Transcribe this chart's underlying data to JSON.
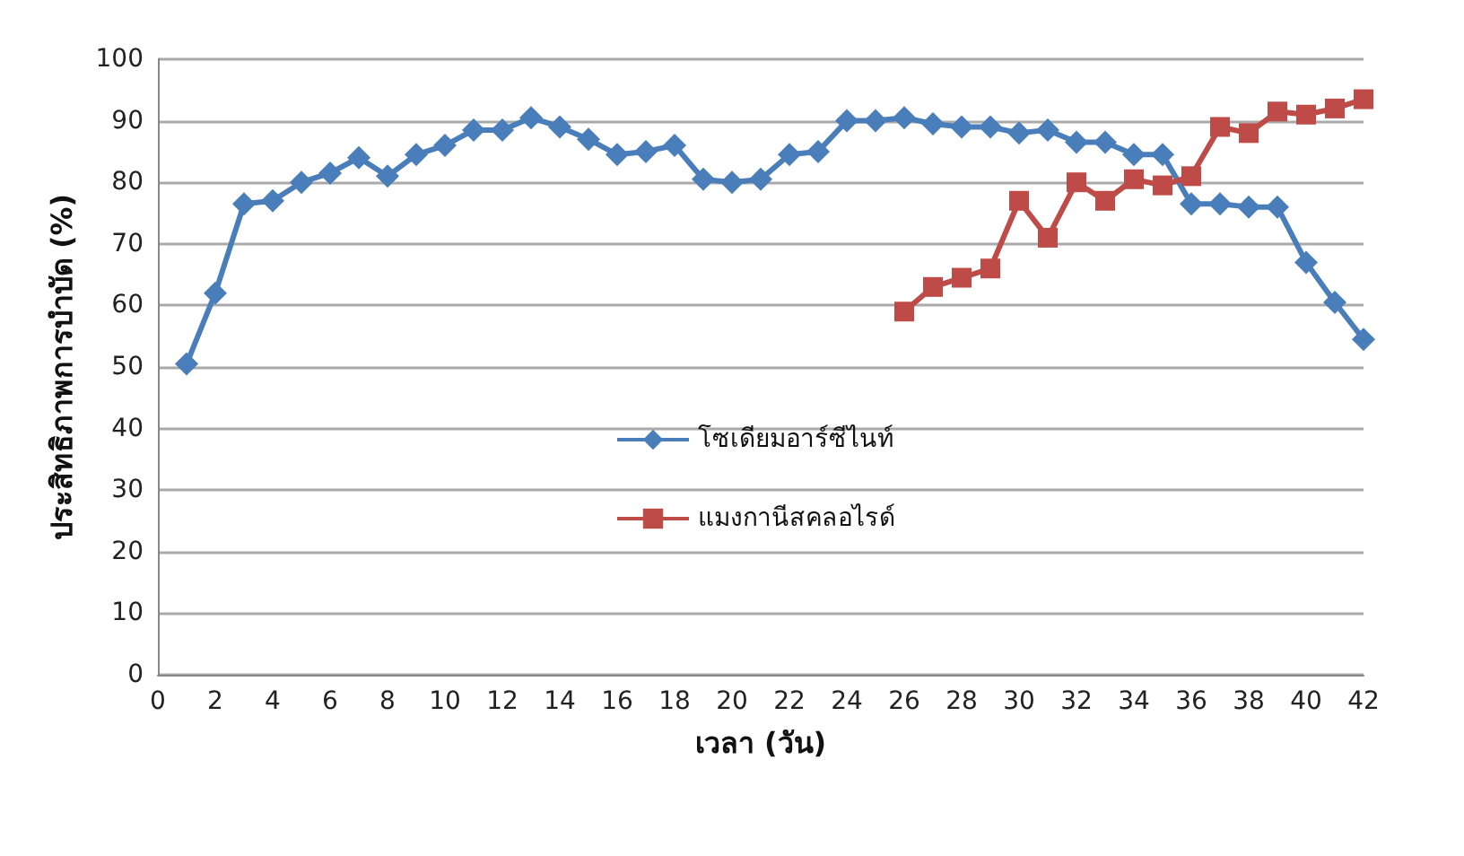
{
  "chart_data": {
    "type": "line",
    "xlabel": "เวลา (วัน)",
    "ylabel": "ประสิทธิภาพการบำบัด (%)",
    "xlim": [
      0,
      42
    ],
    "xticks": [
      0,
      2,
      4,
      6,
      8,
      10,
      12,
      14,
      16,
      18,
      20,
      22,
      24,
      26,
      28,
      30,
      32,
      34,
      36,
      38,
      40,
      42
    ],
    "ylim": [
      0,
      100
    ],
    "yticks": [
      0,
      10,
      20,
      30,
      40,
      50,
      60,
      70,
      80,
      90,
      100
    ],
    "grid": "y",
    "legend": "center",
    "series": [
      {
        "name": "โซเดียมอาร์ซีไนท์",
        "color": "#4a7ebb",
        "marker": "diamond",
        "x": [
          1,
          2,
          3,
          4,
          5,
          6,
          7,
          8,
          9,
          10,
          11,
          12,
          13,
          14,
          15,
          16,
          17,
          18,
          19,
          20,
          21,
          22,
          23,
          24,
          25,
          26,
          27,
          28,
          29,
          30,
          31,
          32,
          33,
          34,
          35,
          36,
          37,
          38,
          39,
          40,
          41,
          42
        ],
        "values": [
          50.5,
          62,
          76.5,
          77,
          80,
          81.5,
          84,
          81,
          84.5,
          86,
          88.5,
          88.5,
          90.5,
          89,
          87,
          84.5,
          85,
          86,
          80.5,
          80,
          80.5,
          84.5,
          85,
          90,
          90,
          90.5,
          89.5,
          89,
          89,
          88,
          88.5,
          86.5,
          86.5,
          84.5,
          84.5,
          76.5,
          76.5,
          76,
          76,
          67,
          60.5,
          54.5
        ]
      },
      {
        "name": "แมงกานีสคลอไรด์",
        "color": "#be4b48",
        "marker": "square",
        "x": [
          26,
          27,
          28,
          29,
          30,
          31,
          32,
          33,
          34,
          35,
          36,
          37,
          38,
          39,
          40,
          41,
          42
        ],
        "values": [
          59,
          63,
          64.5,
          66,
          77,
          71,
          80,
          77,
          80.5,
          79.5,
          81,
          89,
          88,
          91.5,
          91,
          92,
          93.5
        ]
      }
    ]
  }
}
